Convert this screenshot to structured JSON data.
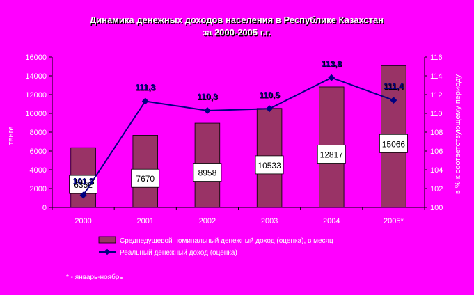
{
  "chart_data": {
    "type": "bar+line",
    "title_line1": "Динамика денежных доходов населения в Республике Казахстан",
    "title_line2": "за 2000-2005 г.г.",
    "categories": [
      "2000",
      "2001",
      "2002",
      "2003",
      "2004",
      "2005*"
    ],
    "bar_series": {
      "name": "Среднедушевой номинальный денежный доход (оценка), в месяц",
      "values": [
        6352,
        7670,
        8958,
        10533,
        12817,
        15066
      ],
      "color": "#993366"
    },
    "line_series": {
      "name": "Реальный денежный доход (оценка)",
      "values": [
        101.3,
        111.3,
        110.3,
        110.5,
        113.8,
        111.4
      ],
      "labels": [
        "101,3",
        "111,3",
        "110,3",
        "110,5",
        "113,8",
        "111,4"
      ],
      "color": "#000080"
    },
    "y_left": {
      "label": "тенге",
      "range": [
        0,
        16000
      ],
      "ticks": [
        "0",
        "2000",
        "4000",
        "6000",
        "8000",
        "10000",
        "12000",
        "14000",
        "16000"
      ]
    },
    "y_right": {
      "label": "в % к соответствующему периоду",
      "range": [
        100,
        116
      ],
      "ticks": [
        "100",
        "102",
        "104",
        "106",
        "108",
        "110",
        "112",
        "114",
        "116"
      ]
    },
    "legend_position": "bottom"
  },
  "footnote": "* - январь-ноябрь",
  "colors": {
    "background": "#ff00ff",
    "bar": "#993366",
    "line": "#000080",
    "text": "#ffffff"
  }
}
